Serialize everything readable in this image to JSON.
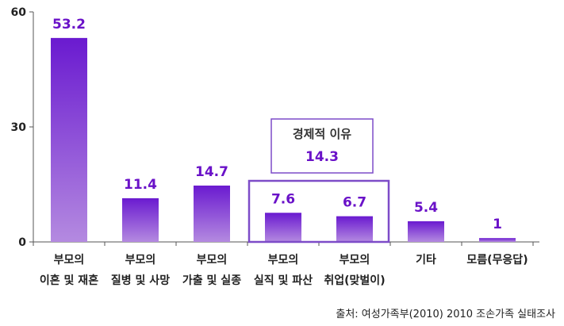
{
  "chart_data": {
    "type": "bar",
    "categories": [
      [
        "부모의",
        "이혼 및 재혼"
      ],
      [
        "부모의",
        "질병 및 사망"
      ],
      [
        "부모의",
        "가출 및 실종"
      ],
      [
        "부모의",
        "실직 및 파산"
      ],
      [
        "부모의",
        "취업(맞벌이)"
      ],
      [
        "기타",
        ""
      ],
      [
        "모름(무응답)",
        ""
      ]
    ],
    "values": [
      53.2,
      11.4,
      14.7,
      7.6,
      6.7,
      5.4,
      1
    ],
    "value_labels": [
      "53.2",
      "11.4",
      "14.7",
      "7.6",
      "6.7",
      "5.4",
      "1"
    ],
    "ylim": [
      0,
      60
    ],
    "yticks": [
      0,
      30,
      60
    ],
    "ytick_labels": [
      "0",
      "30",
      "60"
    ],
    "title": "",
    "xlabel": "",
    "ylabel": "",
    "grid": false,
    "annotation": {
      "title": "경제적 이유",
      "value": "14.3",
      "groups_indices": [
        3,
        4
      ]
    },
    "colors": {
      "bar_top": "#6a1ad0",
      "bar_bottom": "#b48ae0",
      "label": "#6a12c8",
      "box_border": "#7d4cc8",
      "axis": "#555555"
    }
  },
  "source": "출처: 여성가족부(2010) 2010 조손가족 실태조사"
}
